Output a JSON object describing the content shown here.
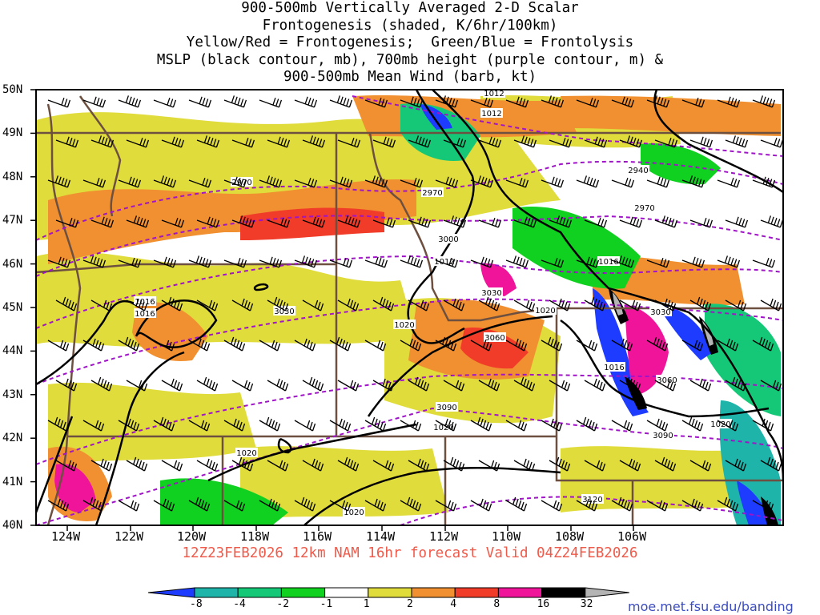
{
  "title_lines": [
    "900-500mb Vertically Averaged 2-D Scalar",
    "Frontogenesis (shaded, K/6hr/100km)",
    "Yellow/Red = Frontogenesis;  Green/Blue = Frontolysis",
    "MSLP (black contour, mb), 700mb height (purple contour, m) &",
    "900-500mb Mean Wind (barb, kt)"
  ],
  "valid_line": "12Z23FEB2026 12km NAM 16hr forecast Valid 04Z24FEB2026",
  "credit": "moe.met.fsu.edu/banding",
  "lat_labels": [
    "50N",
    "49N",
    "48N",
    "47N",
    "46N",
    "45N",
    "44N",
    "43N",
    "42N",
    "41N",
    "40N"
  ],
  "lon_labels": [
    "124W",
    "122W",
    "120W",
    "118W",
    "116W",
    "114W",
    "112W",
    "110W",
    "108W",
    "106W"
  ],
  "colorbar": {
    "labels": [
      "-8",
      "-4",
      "-2",
      "-1",
      "1",
      "2",
      "4",
      "8",
      "16",
      "32"
    ],
    "colors": [
      "#1e3cff",
      "#1eb4aa",
      "#14c878",
      "#10d020",
      "#ffffff",
      "#e0dc3c",
      "#f09030",
      "#f03c28",
      "#f0149a",
      "#000000",
      "#b4b4b4"
    ]
  },
  "colors": {
    "mslp": "#000000",
    "height": "#a014c8",
    "state_lines": "#6e5040",
    "frontolysis_strong": "#1e3cff",
    "frontogenesis_strong": "#f03c28"
  },
  "mslp_labels": [
    "1012",
    "1012",
    "1016",
    "1016",
    "1016",
    "1020",
    "1020",
    "1020",
    "1020",
    "1020",
    "1016",
    "1012",
    "1020"
  ],
  "height_labels": [
    "2970",
    "2970",
    "2940",
    "2970",
    "3000",
    "3030",
    "3030",
    "3060",
    "3030",
    "3060",
    "3090",
    "3090",
    "3120"
  ]
}
